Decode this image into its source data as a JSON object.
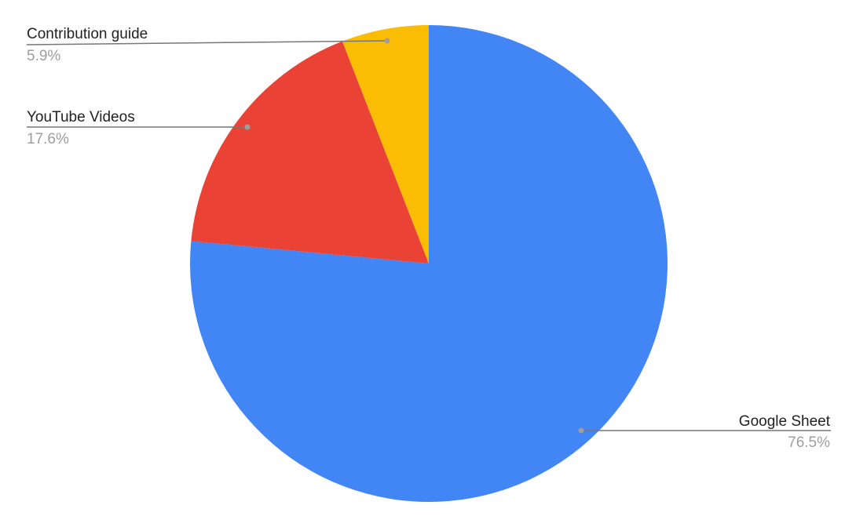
{
  "chart_data": {
    "type": "pie",
    "title": "",
    "start_angle": "12 o'clock, clockwise",
    "slices": [
      {
        "label": "Google Sheet",
        "value": 76.5,
        "display": "76.5%",
        "color": "#4285F4"
      },
      {
        "label": "YouTube Videos",
        "value": 17.6,
        "display": "17.6%",
        "color": "#EA4335"
      },
      {
        "label": "Contribution guide",
        "value": 5.9,
        "display": "5.9%",
        "color": "#FBBC04"
      }
    ],
    "legend": "none (leader-line labels)",
    "leader_line_color": "#9e9e9e"
  }
}
